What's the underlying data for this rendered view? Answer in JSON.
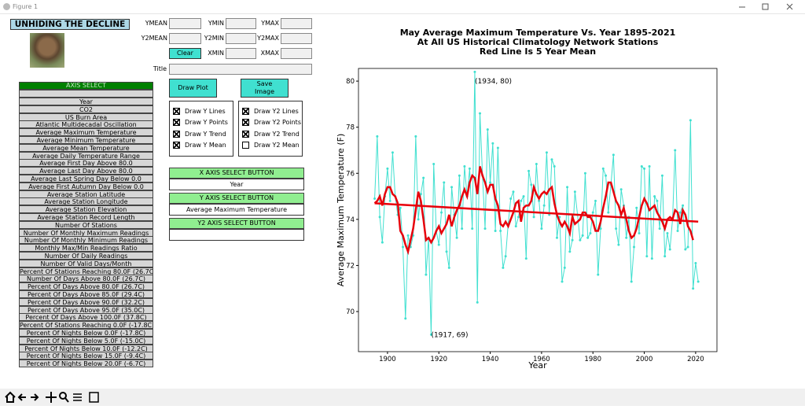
{
  "window": {
    "title": "Figure 1"
  },
  "app_title": "UNHIDING THE DECLINE",
  "fields": [
    "YMEAN",
    "YMIN",
    "YMAX",
    "Y2MEAN",
    "Y2MIN",
    "Y2MAX",
    "XMIN",
    "XMAX"
  ],
  "clear": "Clear",
  "title_label": "Title",
  "axis_select": {
    "header": "AXIS SELECT",
    "items": [
      "Year",
      "CO2",
      "US Burn Area",
      "Atlantic Multidecadal Oscillation",
      "Average Maximum Temperature",
      "Average Minimum Temperature",
      "Average Mean Temperature",
      "Average Daily Temperature Range",
      "Average First Day Above 80.0",
      "Average Last Day Above 80.0",
      "Average Last Spring Day Below 0.0",
      "Average First Autumn Day Below 0.0",
      "Average Station Latitude",
      "Average Station Longitude",
      "Average Station Elevation",
      "Average Station Record Length",
      "Number Of Stations",
      "Number Of Monthly Maximum Readings",
      "Number Of Monthly Minimum Readings",
      "Monthly Max/Min Readings Ratio",
      "Number Of Daily Readings",
      "Number Of Valid Days/Month",
      "Percent Of Stations Reaching 80.0F (26.7C)",
      "Number Of Days Above 80.0F (26.7C)",
      "Percent Of Days Above 80.0F (26.7C)",
      "Percent Of Days Above 85.0F (29.4C)",
      "Percent Of Days Above 90.0F (32.2C)",
      "Percent Of Days Above 95.0F (35.0C)",
      "Percent Of Days Above 100.0F (37.8C)",
      "Percent Of Stations Reaching 0.0F (-17.8C)",
      "Percent Of Nights Below 0.0F (-17.8C)",
      "Percent Of Nights Below 5.0F (-15.0C)",
      "Percent Of Nights Below 10.0F (-12.2C)",
      "Percent Of Nights Below 15.0F (-9.4C)",
      "Percent Of Nights Below 20.0F (-6.7C)"
    ]
  },
  "buttons": {
    "draw": "Draw Plot",
    "save": "Save Image"
  },
  "checks_y": [
    {
      "label": "Draw Y Lines",
      "checked": true
    },
    {
      "label": "Draw Y Points",
      "checked": true
    },
    {
      "label": "Draw Y Trend",
      "checked": true
    },
    {
      "label": "Draw Y Mean",
      "checked": true
    }
  ],
  "checks_y2": [
    {
      "label": "Draw Y2 Lines",
      "checked": true
    },
    {
      "label": "Draw Y2 Points",
      "checked": true
    },
    {
      "label": "Draw Y2 Trend",
      "checked": true
    },
    {
      "label": "Draw Y2 Mean",
      "checked": false
    }
  ],
  "x_select": {
    "button": "X AXIS SELECT BUTTON",
    "value": "Year"
  },
  "y_select": {
    "button": "Y AXIS SELECT BUTTON",
    "value": "Average Maximum Temperature"
  },
  "y2_select": {
    "button": "Y2 AXIS SELECT BUTTON"
  },
  "chart_data": {
    "type": "line",
    "title": [
      "May Average Maximum Temperature Vs. Year 1895-2021",
      "At All US Historical Climatology Network Stations",
      "Red Line Is 5 Year Mean"
    ],
    "xlabel": "Year",
    "ylabel": "Average Maximum Temperature (F)",
    "x": [
      1895,
      1896,
      1897,
      1898,
      1899,
      1900,
      1901,
      1902,
      1903,
      1904,
      1905,
      1906,
      1907,
      1908,
      1909,
      1910,
      1911,
      1912,
      1913,
      1914,
      1915,
      1916,
      1917,
      1918,
      1919,
      1920,
      1921,
      1922,
      1923,
      1924,
      1925,
      1926,
      1927,
      1928,
      1929,
      1930,
      1931,
      1932,
      1933,
      1934,
      1935,
      1936,
      1937,
      1938,
      1939,
      1940,
      1941,
      1942,
      1943,
      1944,
      1945,
      1946,
      1947,
      1948,
      1949,
      1950,
      1951,
      1952,
      1953,
      1954,
      1955,
      1956,
      1957,
      1958,
      1959,
      1960,
      1961,
      1962,
      1963,
      1964,
      1965,
      1966,
      1967,
      1968,
      1969,
      1970,
      1971,
      1972,
      1973,
      1974,
      1975,
      1976,
      1977,
      1978,
      1979,
      1980,
      1981,
      1982,
      1983,
      1984,
      1985,
      1986,
      1987,
      1988,
      1989,
      1990,
      1991,
      1992,
      1993,
      1994,
      1995,
      1996,
      1997,
      1998,
      1999,
      2000,
      2001,
      2002,
      2003,
      2004,
      2005,
      2006,
      2007,
      2008,
      2009,
      2010,
      2011,
      2012,
      2013,
      2014,
      2015,
      2016,
      2017,
      2018,
      2019,
      2020,
      2021
    ],
    "series": [
      {
        "color": "#40e0d0",
        "markers": true,
        "width": 1,
        "values": [
          74.9,
          77.6,
          74.1,
          73.0,
          75.0,
          76.2,
          74.8,
          76.9,
          75.0,
          74.2,
          74.5,
          72.8,
          69.7,
          73.3,
          72.8,
          73.3,
          77.6,
          74.0,
          75.1,
          75.8,
          71.6,
          73.2,
          69.0,
          76.4,
          73.5,
          72.9,
          74.3,
          75.6,
          72.6,
          71.9,
          75.4,
          74.2,
          73.2,
          75.9,
          73.6,
          76.3,
          75.0,
          76.2,
          73.6,
          80.4,
          70.4,
          78.6,
          75.9,
          73.6,
          77.9,
          75.6,
          77.3,
          73.5,
          77.1,
          73.5,
          71.9,
          72.4,
          73.8,
          74.9,
          75.2,
          73.7,
          74.1,
          74.8,
          75.0,
          72.3,
          76.1,
          75.5,
          74.1,
          76.4,
          74.8,
          73.6,
          74.6,
          76.9,
          74.2,
          76.6,
          76.3,
          73.2,
          74.1,
          71.3,
          71.9,
          75.4,
          72.6,
          73.1,
          75.2,
          74.2,
          73.1,
          73.3,
          76.0,
          73.2,
          73.4,
          74.3,
          74.8,
          71.6,
          73.6,
          76.2,
          75.9,
          74.3,
          75.5,
          76.8,
          73.6,
          72.9,
          75.3,
          74.6,
          73.2,
          74.1,
          71.3,
          72.8,
          74.5,
          73.4,
          76.3,
          76.2,
          72.4,
          76.3,
          72.3,
          75.0,
          74.8,
          73.6,
          75.9,
          72.4,
          73.4,
          72.7,
          74.0,
          77.0,
          73.5,
          74.3,
          74.6,
          72.7,
          72.8,
          78.3,
          71.0,
          72.1,
          71.3
        ]
      },
      {
        "color": "#e8000b",
        "markers": false,
        "width": 2.5,
        "values": [
          74.7,
          74.8,
          75.0,
          74.6,
          75.1,
          75.4,
          75.4,
          75.1,
          75.0,
          74.7,
          73.5,
          73.3,
          72.9,
          72.6,
          73.1,
          73.6,
          74.4,
          75.2,
          74.8,
          74.0,
          73.1,
          73.2,
          73.0,
          73.2,
          73.5,
          73.7,
          73.4,
          73.6,
          73.8,
          74.2,
          73.7,
          74.1,
          74.4,
          74.6,
          75.0,
          75.3,
          75.0,
          75.6,
          75.9,
          75.8,
          75.1,
          76.3,
          75.9,
          75.6,
          75.2,
          75.5,
          75.5,
          74.9,
          74.6,
          73.8,
          73.7,
          73.9,
          73.7,
          74.0,
          74.3,
          74.7,
          74.8,
          73.9,
          74.5,
          74.6,
          74.6,
          74.8,
          75.4,
          75.1,
          74.9,
          75.1,
          75.2,
          75.1,
          75.3,
          75.4,
          74.7,
          74.2,
          73.9,
          73.7,
          73.9,
          73.7,
          73.4,
          74.1,
          73.8,
          73.9,
          74.0,
          74.3,
          74.3,
          74.1,
          74.1,
          73.9,
          73.5,
          73.5,
          73.9,
          74.5,
          75.0,
          75.6,
          75.6,
          75.2,
          74.8,
          74.6,
          74.2,
          74.5,
          74.0,
          73.5,
          73.2,
          73.3,
          73.6,
          74.1,
          74.6,
          74.9,
          74.7,
          74.4,
          74.5,
          74.6,
          74.3,
          74.1,
          73.9,
          73.6,
          74.0,
          74.1,
          74.0,
          74.4,
          74.3,
          73.8,
          74.4,
          74.2,
          73.7,
          73.5,
          73.1,
          null,
          null
        ]
      }
    ],
    "trend": {
      "color": "#e8000b",
      "x": [
        1895,
        2021
      ],
      "values": [
        74.7,
        73.9
      ]
    },
    "annotations": [
      {
        "text": "(1934, 80)",
        "x": 1934,
        "y": 80
      },
      {
        "text": "(1917, 69)",
        "x": 1917,
        "y": 69
      }
    ],
    "xlim": [
      1888.7,
      2028.3
    ],
    "xticks": [
      1900,
      1920,
      1940,
      1960,
      1980,
      2000,
      2020
    ],
    "ylim": [
      68.26,
      80.55
    ],
    "yticks": [
      70,
      72,
      74,
      76,
      78,
      80
    ]
  }
}
